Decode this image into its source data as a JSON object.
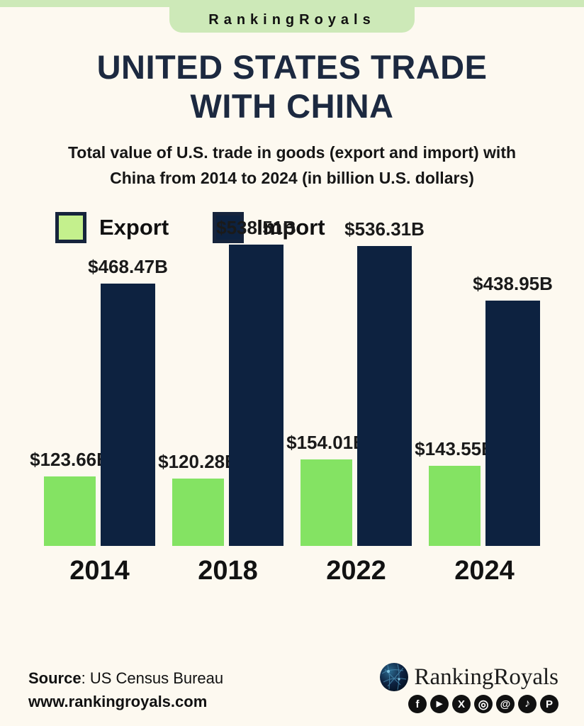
{
  "banner": {
    "brand": "RankingRoyals"
  },
  "header": {
    "title_lines": [
      "UNITED STATES TRADE",
      "WITH CHINA"
    ],
    "subtitle_lines": [
      "Total value of U.S. trade in goods (export and import) with",
      "China from 2014 to 2024 (in billion U.S. dollars)"
    ]
  },
  "legend": {
    "export_label": "Export",
    "import_label": "Import"
  },
  "chart_data": {
    "type": "bar",
    "title": "United States trade with China",
    "unit": "billion U.S. dollars",
    "categories": [
      "2014",
      "2018",
      "2022",
      "2024"
    ],
    "series": [
      {
        "name": "Export",
        "color": "#84e363",
        "values": [
          123.66,
          120.28,
          154.01,
          143.55
        ],
        "labels": [
          "$123.66B",
          "$120.28B",
          "$154.01B",
          "$143.55B"
        ]
      },
      {
        "name": "Import",
        "color": "#0d2240",
        "values": [
          468.47,
          538.51,
          536.31,
          438.95
        ],
        "labels": [
          "$468.47B",
          "$538.51B",
          "$536.31B",
          "$438.95B"
        ]
      }
    ],
    "ylim": [
      0,
      560
    ],
    "grid": false,
    "legend_position": "top-left"
  },
  "footer": {
    "source_label": "Source",
    "source_value": ": US Census Bureau",
    "url": "www.rankingroyals.com",
    "brand": "RankingRoyals",
    "social_icons": [
      {
        "name": "facebook-icon",
        "glyph": "f"
      },
      {
        "name": "youtube-icon",
        "glyph": "▶"
      },
      {
        "name": "x-icon",
        "glyph": "X"
      },
      {
        "name": "instagram-icon",
        "glyph": "◎"
      },
      {
        "name": "threads-icon",
        "glyph": "@"
      },
      {
        "name": "tiktok-icon",
        "glyph": "♪"
      },
      {
        "name": "pinterest-icon",
        "glyph": "P"
      }
    ]
  },
  "colors": {
    "background": "#fdf9f0",
    "banner_green": "#cde9b8",
    "bar_green": "#84e363",
    "legend_green": "#c4f08d",
    "navy": "#0d2240",
    "title_navy": "#1c2940"
  }
}
